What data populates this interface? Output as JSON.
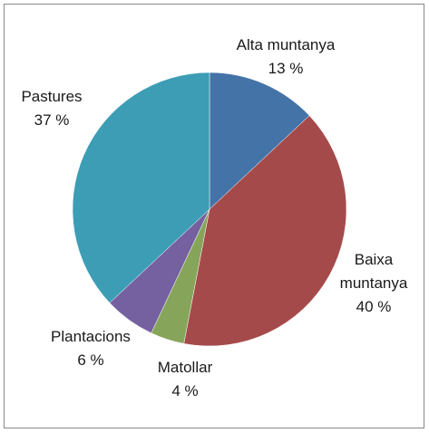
{
  "chart_data": {
    "type": "pie",
    "categories": [
      "Alta muntanya",
      "Baixa muntanya",
      "Matollar",
      "Plantacions",
      "Pastures"
    ],
    "values": [
      13,
      40,
      4,
      6,
      37
    ],
    "value_labels": [
      "13 %",
      "40 %",
      "4 %",
      "6 %",
      "37 %"
    ],
    "colors": [
      "#4473a8",
      "#a54a4a",
      "#86a55a",
      "#7560a0",
      "#3c9db5"
    ]
  }
}
